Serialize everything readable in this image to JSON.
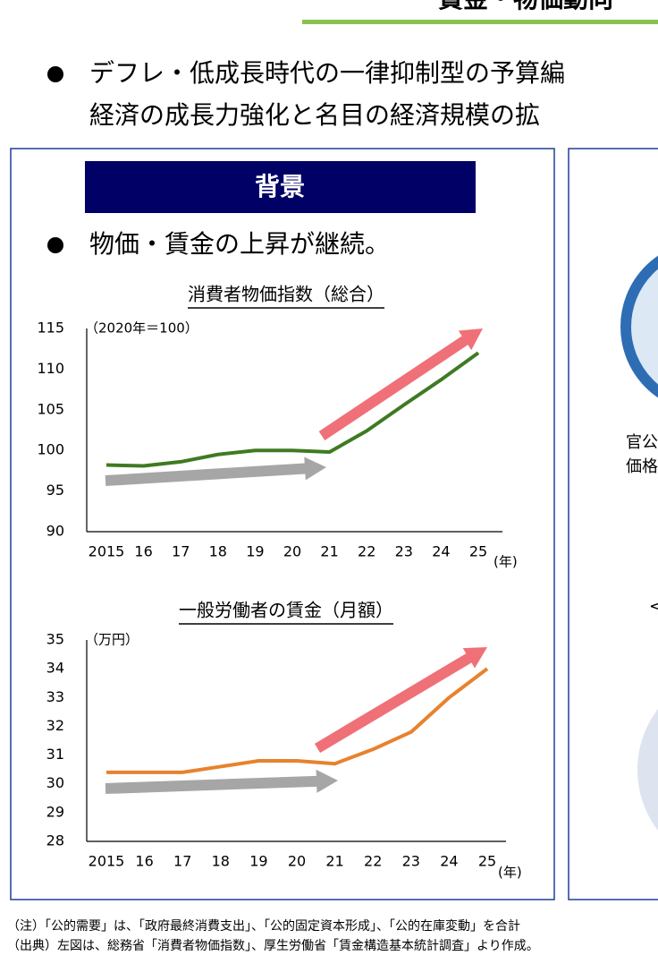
{
  "header": {
    "title": "賃金・物価動向"
  },
  "bullets": [
    "デフレ・低成長時代の一律抑制型の予算編",
    "経済の成長力強化と名目の経済規模の拡"
  ],
  "left_panel": {
    "heading": "背景",
    "bullet": "物価・賃金の上昇が継続。"
  },
  "right_panel": {
    "texts": [
      "官公",
      "価格",
      "<"
    ]
  },
  "chart_data": [
    {
      "type": "line",
      "title": "消費者物価指数（総合）",
      "y_unit_label": "（2020年＝100）",
      "x_unit_label": "(年)",
      "categories": [
        "2015",
        "16",
        "17",
        "18",
        "19",
        "20",
        "21",
        "22",
        "23",
        "24",
        "25"
      ],
      "series": [
        {
          "color": "#3f7a22",
          "values": [
            98.2,
            98.1,
            98.6,
            99.5,
            100.0,
            100.0,
            99.8,
            102.4,
            105.6,
            108.7,
            112.0
          ]
        }
      ],
      "ylim": [
        90,
        115
      ],
      "yticks": [
        90,
        95,
        100,
        105,
        110,
        115
      ]
    },
    {
      "type": "line",
      "title": "一般労働者の賃金（月額）",
      "y_unit_label": "（万円）",
      "x_unit_label": "(年)",
      "categories": [
        "2015",
        "16",
        "17",
        "18",
        "19",
        "20",
        "21",
        "22",
        "23",
        "24",
        "25"
      ],
      "series": [
        {
          "color": "#e8822e",
          "values": [
            30.4,
            30.4,
            30.4,
            30.6,
            30.8,
            30.8,
            30.7,
            31.2,
            31.8,
            33.0,
            34.0
          ]
        }
      ],
      "ylim": [
        28,
        35
      ],
      "yticks": [
        28,
        29,
        30,
        31,
        32,
        33,
        34,
        35
      ]
    }
  ],
  "footnotes": [
    "（注）「公的需要」は、「政府最終消費支出」、「公的固定資本形成」、「公的在庫変動」を合計",
    "（出典）左図は、総務省「消費者物価指数」、厚生労働省「賃金構造基本統計調査」より作成。"
  ]
}
